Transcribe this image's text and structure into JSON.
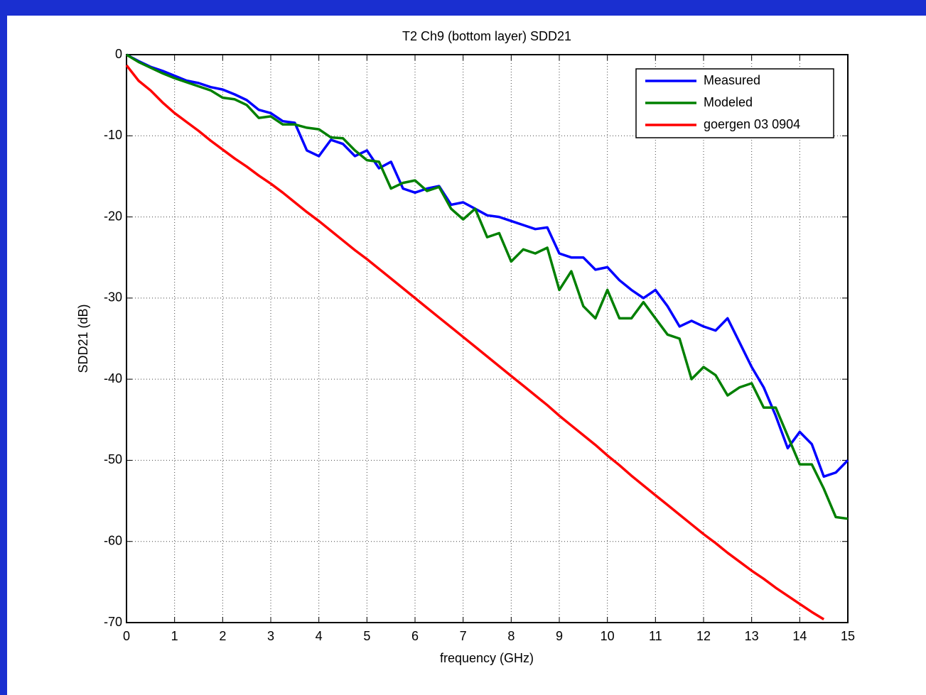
{
  "chart_data": {
    "type": "line",
    "title": "T2 Ch9 (bottom layer) SDD21",
    "x_label": "frequency (GHz)",
    "y_label": "SDD21 (dB)",
    "x": [
      0,
      0.25,
      0.5,
      0.75,
      1,
      1.25,
      1.5,
      1.75,
      2,
      2.25,
      2.5,
      2.75,
      3,
      3.25,
      3.5,
      3.75,
      4,
      4.25,
      4.5,
      4.75,
      5,
      5.25,
      5.5,
      5.75,
      6,
      6.25,
      6.5,
      6.75,
      7,
      7.25,
      7.5,
      7.75,
      8,
      8.25,
      8.5,
      8.75,
      9,
      9.25,
      9.5,
      9.75,
      10,
      10.25,
      10.5,
      10.75,
      11,
      11.25,
      11.5,
      11.75,
      12,
      12.25,
      12.5,
      12.75,
      13,
      13.25,
      13.5,
      13.75,
      14,
      14.25,
      14.5,
      14.75,
      15
    ],
    "series": [
      {
        "name": "Measured",
        "color": "#0000ff",
        "values": [
          0,
          -0.8,
          -1.5,
          -2.0,
          -2.6,
          -3.2,
          -3.5,
          -4.0,
          -4.3,
          -4.9,
          -5.6,
          -6.8,
          -7.2,
          -8.2,
          -8.4,
          -11.8,
          -12.5,
          -10.5,
          -11.0,
          -12.5,
          -11.8,
          -14.0,
          -13.2,
          -16.5,
          -17.0,
          -16.5,
          -16.2,
          -18.5,
          -18.2,
          -19.0,
          -19.8,
          -20.0,
          -20.5,
          -21.0,
          -21.5,
          -21.3,
          -24.5,
          -25.0,
          -25.0,
          -26.5,
          -26.2,
          -27.8,
          -29.0,
          -30.0,
          -29.0,
          -31.0,
          -33.5,
          -32.8,
          -33.5,
          -34.0,
          -32.5,
          -35.5,
          -38.5,
          -41.0,
          -44.5,
          -48.5,
          -46.5,
          -48.0,
          -52.0,
          -51.5,
          -50
        ]
      },
      {
        "name": "Modeled",
        "color": "#008000",
        "values": [
          0,
          -0.9,
          -1.6,
          -2.3,
          -2.9,
          -3.4,
          -3.9,
          -4.4,
          -5.3,
          -5.5,
          -6.2,
          -7.8,
          -7.6,
          -8.6,
          -8.6,
          -9.0,
          -9.2,
          -10.2,
          -10.3,
          -11.8,
          -13.0,
          -13.2,
          -16.5,
          -15.8,
          -15.5,
          -16.8,
          -16.3,
          -19.0,
          -20.3,
          -19.0,
          -22.5,
          -22.0,
          -25.5,
          -24.0,
          -24.5,
          -23.8,
          -29.0,
          -26.7,
          -31.0,
          -32.5,
          -29.0,
          -32.5,
          -32.5,
          -30.5,
          -32.5,
          -34.5,
          -35.0,
          -40.0,
          -38.5,
          -39.5,
          -42.0,
          -41.0,
          -40.5,
          -43.5,
          -43.5,
          -47.0,
          -50.5,
          -50.5,
          -53.5,
          -57.0,
          -57.2
        ]
      },
      {
        "name": "goergen 03 0904",
        "color": "#ff0000",
        "values": [
          -1.3,
          -3.2,
          -4.4,
          -5.9,
          -7.2,
          -8.3,
          -9.4,
          -10.6,
          -11.7,
          -12.8,
          -13.8,
          -14.9,
          -15.9,
          -17,
          -18.2,
          -19.4,
          -20.5,
          -21.7,
          -22.9,
          -24.1,
          -25.2,
          -26.4,
          -27.6,
          -28.8,
          -30,
          -31.2,
          -32.4,
          -33.6,
          -34.8,
          -36,
          -37.2,
          -38.4,
          -39.6,
          -40.8,
          -42,
          -43.2,
          -44.5,
          -45.7,
          -46.9,
          -48.1,
          -49.4,
          -50.6,
          -51.9,
          -53.1,
          -54.3,
          -55.5,
          -56.7,
          -57.9,
          -59.1,
          -60.2,
          -61.4,
          -62.5,
          -63.6,
          -64.6,
          -65.7,
          -66.7,
          -67.7,
          -68.7,
          -69.6,
          null,
          null
        ]
      }
    ],
    "xlim": [
      0,
      15
    ],
    "xticks": [
      0,
      1,
      2,
      3,
      4,
      5,
      6,
      7,
      8,
      9,
      10,
      11,
      12,
      13,
      14,
      15
    ],
    "ylim": [
      -70,
      0
    ],
    "yticks": [
      -70,
      -60,
      -50,
      -40,
      -30,
      -20,
      -10,
      0
    ],
    "grid": true,
    "legend": "upper right"
  }
}
